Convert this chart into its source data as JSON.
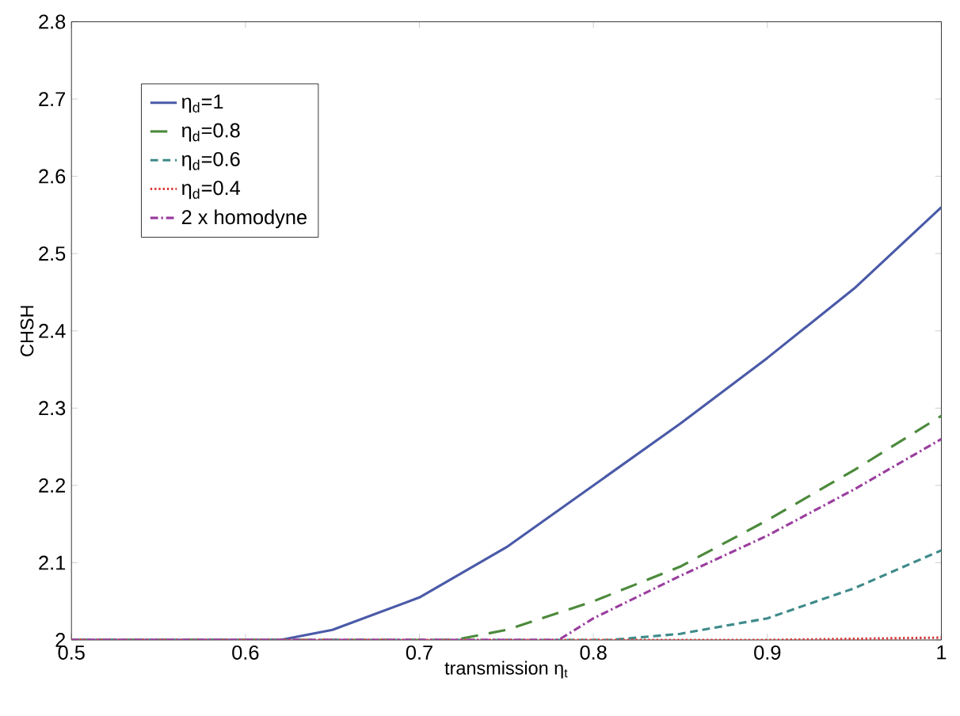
{
  "chart_data": {
    "type": "line",
    "xlabel": "transmission η$_{t}$",
    "ylabel": "CHSH",
    "xlim": [
      0.5,
      1
    ],
    "ylim": [
      2,
      2.8
    ],
    "xticks": [
      0.5,
      0.6,
      0.7,
      0.8,
      0.9,
      1
    ],
    "yticks": [
      2,
      2.1,
      2.2,
      2.3,
      2.4,
      2.5,
      2.6,
      2.7,
      2.8
    ],
    "legend": "top left",
    "grid": false,
    "series": [
      {
        "name": "η$_{d}$=1",
        "color": "#4a5aa8",
        "line_style": "solid",
        "x": [
          0.5,
          0.55,
          0.6,
          0.62,
          0.65,
          0.7,
          0.75,
          0.8,
          0.85,
          0.9,
          0.95,
          1.0
        ],
        "values": [
          2,
          2,
          2,
          2,
          2.013,
          2.055,
          2.12,
          2.2,
          2.28,
          2.365,
          2.455,
          2.56
        ]
      },
      {
        "name": "η$_{d}$=0.8",
        "color": "#4c8a3c",
        "line_style": "longdashed",
        "x": [
          0.5,
          0.6,
          0.7,
          0.72,
          0.75,
          0.8,
          0.85,
          0.9,
          0.95,
          1.0
        ],
        "values": [
          2,
          2,
          2,
          2,
          2.013,
          2.05,
          2.095,
          2.155,
          2.22,
          2.29
        ]
      },
      {
        "name": "η$_{d}$=0.6",
        "color": "#3f8a8a",
        "line_style": "dashed",
        "x": [
          0.5,
          0.6,
          0.7,
          0.81,
          0.85,
          0.9,
          0.95,
          1.0
        ],
        "values": [
          2,
          2,
          2,
          2,
          2.008,
          2.028,
          2.067,
          2.116
        ]
      },
      {
        "name": "η$_{d}$=0.4",
        "color": "#d83a3a",
        "line_style": "dotted",
        "x": [
          0.5,
          0.6,
          0.7,
          0.8,
          0.9,
          1.0
        ],
        "values": [
          2,
          2,
          2,
          2,
          2,
          2.003
        ]
      },
      {
        "name": "2 x homodyne",
        "color": "#9a3e9e",
        "line_style": "dashdot",
        "x": [
          0.5,
          0.6,
          0.7,
          0.78,
          0.8,
          0.85,
          0.9,
          0.95,
          1.0
        ],
        "values": [
          2,
          2,
          2,
          2,
          2.028,
          2.083,
          2.135,
          2.195,
          2.26
        ]
      }
    ]
  }
}
